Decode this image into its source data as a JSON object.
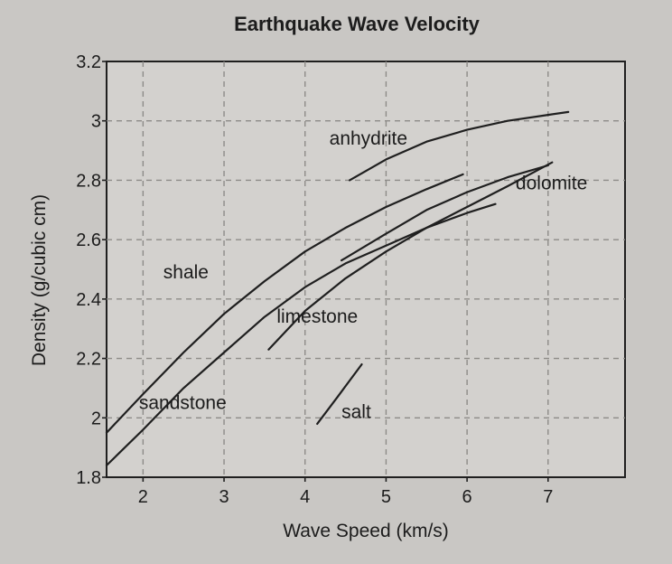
{
  "chart_data": {
    "type": "line",
    "title": "Earthquake Wave Velocity",
    "xlabel": "Wave Speed (km/s)",
    "ylabel": "Density (g/cubic cm)",
    "xlim": [
      1.55,
      7.95
    ],
    "ylim": [
      1.8,
      3.2
    ],
    "x_ticks": [
      2,
      3,
      4,
      5,
      6,
      7
    ],
    "y_ticks": [
      1.8,
      2,
      2.2,
      2.4,
      2.6,
      2.8,
      3,
      3.2
    ],
    "x_tick_labels": [
      "2",
      "3",
      "4",
      "5",
      "6",
      "7"
    ],
    "y_tick_labels": [
      "1.8",
      "2",
      "2.2",
      "2.4",
      "2.6",
      "2.8",
      "3",
      "3.2"
    ],
    "grid": true,
    "series": [
      {
        "name": "shale",
        "x": [
          1.55,
          2.0,
          2.5,
          3.0,
          3.5,
          4.0,
          4.5,
          5.0,
          5.5,
          5.95
        ],
        "y": [
          1.95,
          2.08,
          2.22,
          2.35,
          2.46,
          2.56,
          2.64,
          2.71,
          2.77,
          2.82
        ]
      },
      {
        "name": "sandstone",
        "x": [
          1.55,
          2.0,
          2.5,
          3.0,
          3.5,
          4.0,
          4.5,
          5.0,
          5.5,
          6.0,
          6.35
        ],
        "y": [
          1.84,
          1.96,
          2.1,
          2.22,
          2.34,
          2.44,
          2.52,
          2.58,
          2.64,
          2.69,
          2.72
        ]
      },
      {
        "name": "limestone",
        "x": [
          3.55,
          4.0,
          4.5,
          5.0,
          5.5,
          6.0,
          6.5,
          7.05
        ],
        "y": [
          2.23,
          2.36,
          2.47,
          2.56,
          2.64,
          2.71,
          2.78,
          2.86
        ]
      },
      {
        "name": "dolomite",
        "x": [
          4.45,
          5.0,
          5.5,
          6.0,
          6.5,
          7.0
        ],
        "y": [
          2.53,
          2.62,
          2.7,
          2.76,
          2.81,
          2.85
        ]
      },
      {
        "name": "anhydrite",
        "x": [
          4.55,
          5.0,
          5.5,
          6.0,
          6.5,
          7.0,
          7.25
        ],
        "y": [
          2.8,
          2.87,
          2.93,
          2.97,
          3.0,
          3.02,
          3.03
        ]
      },
      {
        "name": "salt",
        "x": [
          4.15,
          4.4,
          4.7
        ],
        "y": [
          1.98,
          2.07,
          2.18
        ]
      }
    ],
    "annotations": [
      {
        "text": "anhydrite",
        "x": 4.3,
        "y": 2.92
      },
      {
        "text": "dolomite",
        "x": 6.6,
        "y": 2.77
      },
      {
        "text": "shale",
        "x": 2.25,
        "y": 2.47
      },
      {
        "text": "limestone",
        "x": 3.65,
        "y": 2.32
      },
      {
        "text": "sandstone",
        "x": 1.95,
        "y": 2.03
      },
      {
        "text": "salt",
        "x": 4.45,
        "y": 2.0
      }
    ]
  }
}
